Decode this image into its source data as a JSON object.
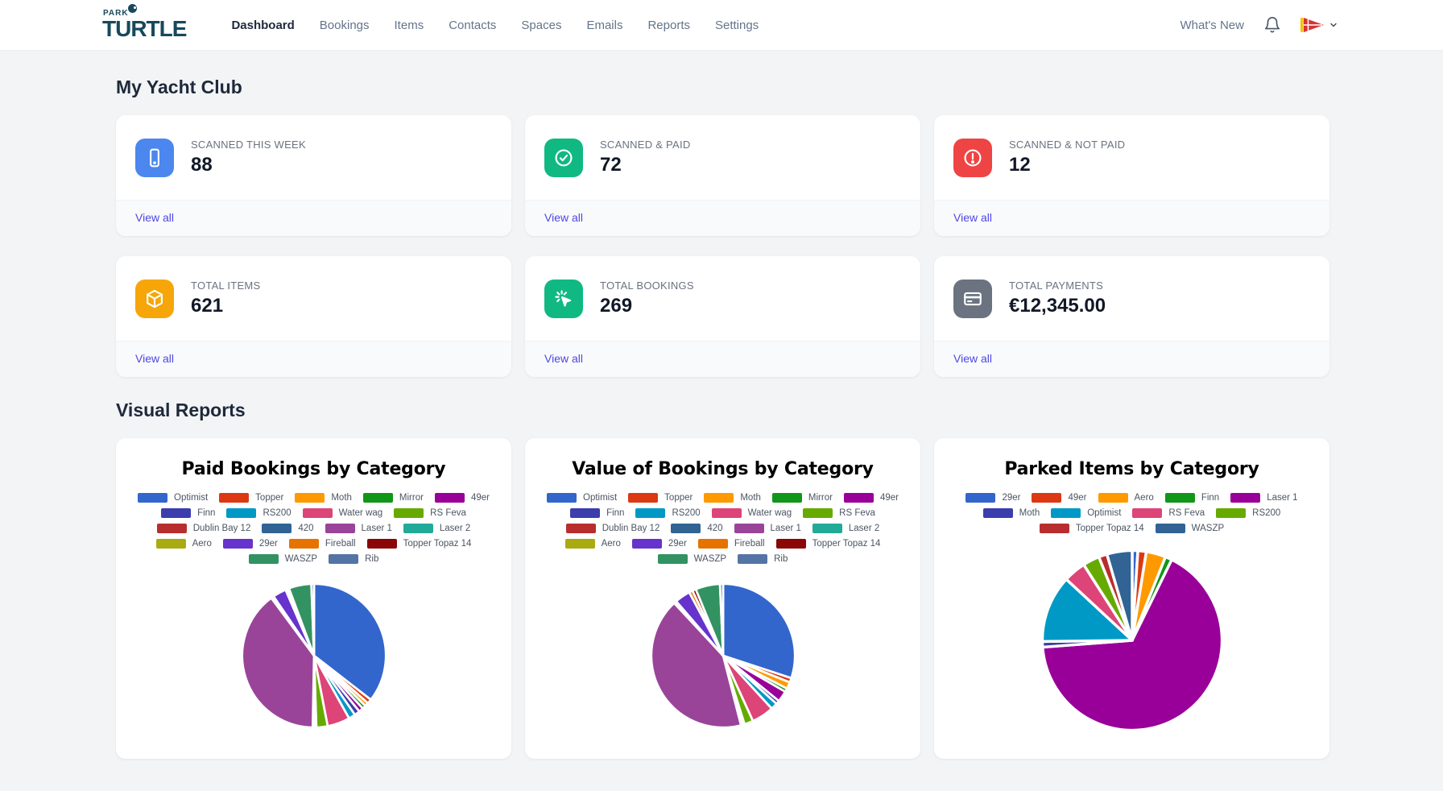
{
  "brand": {
    "top": "PARK",
    "wordmark": "TURTLE"
  },
  "nav": {
    "items": [
      {
        "label": "Dashboard",
        "active": true
      },
      {
        "label": "Bookings",
        "active": false
      },
      {
        "label": "Items",
        "active": false
      },
      {
        "label": "Contacts",
        "active": false
      },
      {
        "label": "Spaces",
        "active": false
      },
      {
        "label": "Emails",
        "active": false
      },
      {
        "label": "Reports",
        "active": false
      },
      {
        "label": "Settings",
        "active": false
      }
    ],
    "whats_new": "What's New",
    "icons": [
      "bell-icon",
      "club-burgee-flag",
      "chevron-down-icon"
    ]
  },
  "sections": {
    "my_yacht_club": "My Yacht Club",
    "visual_reports": "Visual Reports"
  },
  "view_all_label": "View all",
  "stats": [
    {
      "label": "SCANNED THIS WEEK",
      "value": "88",
      "icon": "smartphone-icon",
      "color": "#4b87ee"
    },
    {
      "label": "SCANNED & PAID",
      "value": "72",
      "icon": "check-circle-icon",
      "color": "#10b981"
    },
    {
      "label": "SCANNED & NOT PAID",
      "value": "12",
      "icon": "alert-circle-icon",
      "color": "#ef4444"
    },
    {
      "label": "TOTAL ITEMS",
      "value": "621",
      "icon": "cube-icon",
      "color": "#f6a609"
    },
    {
      "label": "TOTAL BOOKINGS",
      "value": "269",
      "icon": "cursor-click-icon",
      "color": "#10b981"
    },
    {
      "label": "TOTAL PAYMENTS",
      "value": "€12,345.00",
      "icon": "credit-card-icon",
      "color": "#6b7280"
    }
  ],
  "chart_data": [
    {
      "type": "pie",
      "title": "Paid Bookings by Category",
      "legend_position": "top",
      "categories": [
        "Optimist",
        "Topper",
        "Moth",
        "Mirror",
        "49er",
        "Finn",
        "RS200",
        "Water wag",
        "RS Feva",
        "Dublin Bay 12",
        "420",
        "Laser 1",
        "Laser 2",
        "Aero",
        "29er",
        "Fireball",
        "Topper Topaz 14",
        "WASZP",
        "Rib"
      ],
      "values": [
        35,
        1,
        0.8,
        0.8,
        1,
        1.2,
        1.5,
        5,
        2.5,
        0.4,
        0.4,
        39,
        0.3,
        0.3,
        3,
        0.4,
        0.4,
        5,
        0.6
      ],
      "values_unit": "percent-estimated",
      "colors": [
        "#3366CC",
        "#DC3912",
        "#FF9900",
        "#109618",
        "#990099",
        "#3B3EAC",
        "#0099C6",
        "#DD4477",
        "#66AA00",
        "#B82E2E",
        "#316395",
        "#994499",
        "#22AA99",
        "#AAAA11",
        "#6633CC",
        "#E67300",
        "#8B0707",
        "#329262",
        "#5574A6"
      ]
    },
    {
      "type": "pie",
      "title": "Value of Bookings by Category",
      "legend_position": "top",
      "categories": [
        "Optimist",
        "Topper",
        "Moth",
        "Mirror",
        "49er",
        "Finn",
        "RS200",
        "Water wag",
        "RS Feva",
        "Dublin Bay 12",
        "420",
        "Laser 1",
        "Laser 2",
        "Aero",
        "29er",
        "Fireball",
        "Topper Topaz 14",
        "WASZP",
        "Rib"
      ],
      "values": [
        30,
        1,
        1.5,
        0.8,
        2.5,
        0.8,
        1.5,
        5,
        2,
        0.4,
        0.4,
        42,
        0.3,
        0.3,
        3.5,
        0.8,
        0.8,
        5.5,
        0.7
      ],
      "values_unit": "percent-estimated",
      "colors": [
        "#3366CC",
        "#DC3912",
        "#FF9900",
        "#109618",
        "#990099",
        "#3B3EAC",
        "#0099C6",
        "#DD4477",
        "#66AA00",
        "#B82E2E",
        "#316395",
        "#994499",
        "#22AA99",
        "#AAAA11",
        "#6633CC",
        "#E67300",
        "#8B0707",
        "#329262",
        "#5574A6"
      ]
    },
    {
      "type": "pie",
      "title": "Parked Items by Category",
      "legend_position": "top",
      "categories": [
        "29er",
        "49er",
        "Aero",
        "Finn",
        "Laser 1",
        "Moth",
        "Optimist",
        "RS Feva",
        "RS200",
        "Topper Topaz 14",
        "WASZP"
      ],
      "values": [
        1,
        1.5,
        3.5,
        1.2,
        66,
        1,
        12,
        4,
        3,
        1.5,
        4.5
      ],
      "values_unit": "percent-estimated",
      "colors": [
        "#3366CC",
        "#DC3912",
        "#FF9900",
        "#109618",
        "#990099",
        "#3B3EAC",
        "#0099C6",
        "#DD4477",
        "#66AA00",
        "#B82E2E",
        "#316395"
      ]
    }
  ]
}
